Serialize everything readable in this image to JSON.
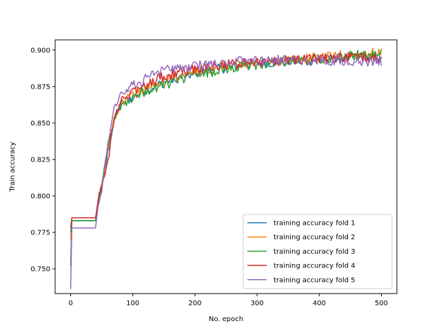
{
  "chart_data": {
    "type": "line",
    "title": "",
    "xlabel": "No. epoch",
    "ylabel": "Train accuracy",
    "xlim": [
      -25,
      525
    ],
    "ylim": [
      0.733,
      0.907
    ],
    "x_ticks": [
      0,
      100,
      200,
      300,
      400,
      500
    ],
    "x_tick_labels": [
      "0",
      "100",
      "200",
      "300",
      "400",
      "500"
    ],
    "y_ticks": [
      0.75,
      0.775,
      0.8,
      0.825,
      0.85,
      0.875,
      0.9
    ],
    "y_tick_labels": [
      "0.750",
      "0.775",
      "0.800",
      "0.825",
      "0.850",
      "0.875",
      "0.900"
    ],
    "grid": false,
    "legend_position": "lower-right",
    "series": [
      {
        "name": "training accuracy fold 1",
        "color": "#1f77b4",
        "x": [
          0,
          1,
          40,
          45,
          50,
          60,
          70,
          80,
          100,
          120,
          150,
          200,
          250,
          300,
          350,
          400,
          450,
          500
        ],
        "y": [
          0.752,
          0.783,
          0.783,
          0.797,
          0.806,
          0.83,
          0.852,
          0.862,
          0.868,
          0.872,
          0.878,
          0.884,
          0.888,
          0.891,
          0.892,
          0.893,
          0.895,
          0.895
        ]
      },
      {
        "name": "training accuracy fold 2",
        "color": "#ff7f0e",
        "x": [
          0,
          1,
          40,
          45,
          50,
          60,
          70,
          80,
          100,
          120,
          150,
          200,
          250,
          300,
          350,
          400,
          450,
          500
        ],
        "y": [
          0.77,
          0.785,
          0.785,
          0.798,
          0.806,
          0.832,
          0.853,
          0.863,
          0.87,
          0.874,
          0.879,
          0.885,
          0.889,
          0.892,
          0.893,
          0.895,
          0.897,
          0.898
        ]
      },
      {
        "name": "training accuracy fold 3",
        "color": "#2ca02c",
        "x": [
          0,
          1,
          40,
          45,
          50,
          60,
          70,
          80,
          100,
          120,
          150,
          200,
          250,
          300,
          350,
          400,
          450,
          500
        ],
        "y": [
          0.775,
          0.783,
          0.783,
          0.799,
          0.807,
          0.833,
          0.853,
          0.862,
          0.868,
          0.872,
          0.876,
          0.883,
          0.887,
          0.89,
          0.892,
          0.894,
          0.896,
          0.897
        ]
      },
      {
        "name": "training accuracy fold 4",
        "color": "#d62728",
        "x": [
          0,
          1,
          40,
          45,
          50,
          60,
          63,
          65,
          70,
          80,
          100,
          120,
          150,
          200,
          250,
          300,
          350,
          400,
          450,
          500
        ],
        "y": [
          0.778,
          0.785,
          0.785,
          0.8,
          0.806,
          0.825,
          0.828,
          0.845,
          0.852,
          0.864,
          0.872,
          0.876,
          0.882,
          0.887,
          0.89,
          0.892,
          0.893,
          0.894,
          0.895,
          0.894
        ]
      },
      {
        "name": "training accuracy fold 5",
        "color": "#9467bd",
        "x": [
          0,
          1,
          40,
          45,
          50,
          60,
          70,
          80,
          100,
          120,
          150,
          200,
          250,
          300,
          350,
          400,
          450,
          500
        ],
        "y": [
          0.736,
          0.778,
          0.778,
          0.794,
          0.805,
          0.838,
          0.86,
          0.87,
          0.876,
          0.88,
          0.886,
          0.889,
          0.891,
          0.893,
          0.893,
          0.893,
          0.892,
          0.892
        ]
      }
    ]
  }
}
